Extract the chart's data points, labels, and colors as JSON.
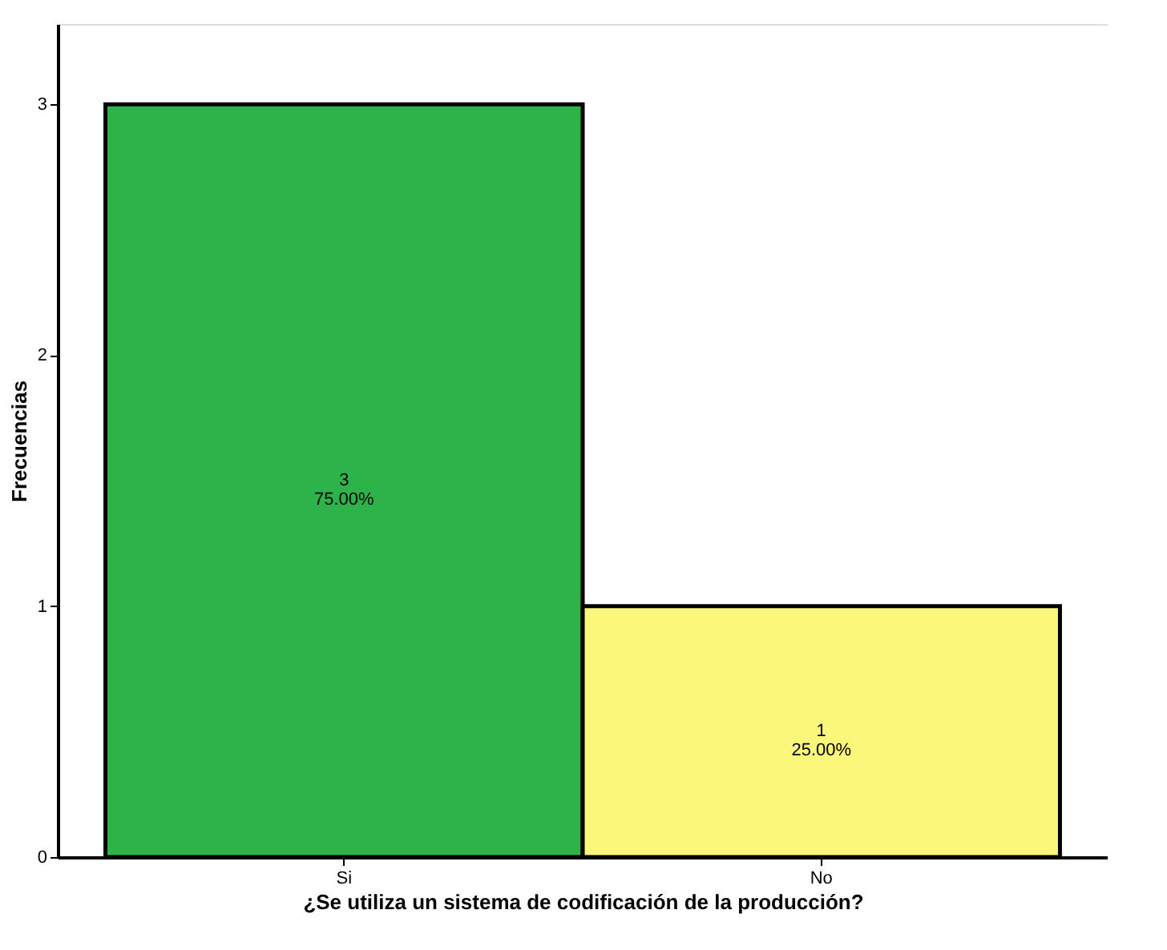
{
  "chart_data": {
    "type": "bar",
    "xlabel": "¿Se utiliza un sistema de codificación de la producción?",
    "ylabel": "Frecuencias",
    "categories": [
      "Si",
      "No"
    ],
    "values": [
      3,
      1
    ],
    "colors": [
      "#2db34a",
      "#fbf77a"
    ],
    "value_labels": [
      "3\n75.00%",
      "1\n25.00%"
    ],
    "ylim": [
      0,
      3.32
    ],
    "yticks": [
      0,
      1,
      2,
      3
    ],
    "grid": false,
    "legend": false
  }
}
